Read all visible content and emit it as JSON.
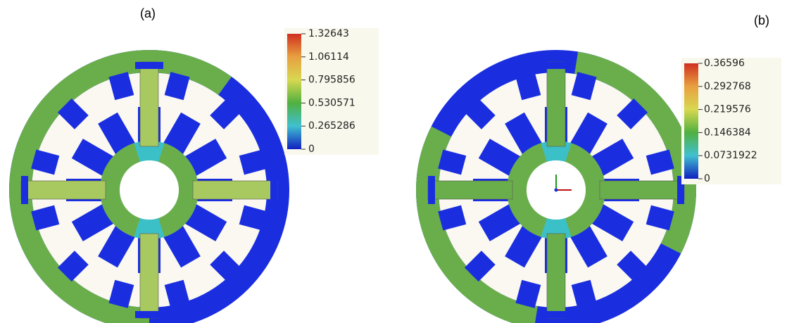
{
  "panels": [
    {
      "label": "(a)",
      "colorbar": {
        "ticks": [
          1.32643,
          1.06114,
          0.795856,
          0.530571,
          0.265286,
          0
        ]
      }
    },
    {
      "label": "(b)",
      "colorbar": {
        "ticks": [
          0.36596,
          0.292768,
          0.219576,
          0.146384,
          0.0731922,
          0
        ]
      }
    }
  ]
}
